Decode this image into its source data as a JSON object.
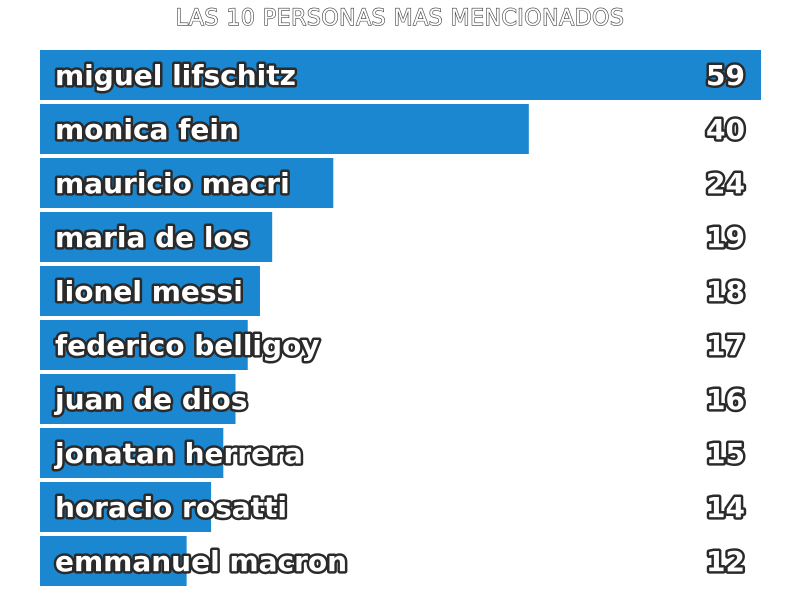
{
  "chart_data": {
    "type": "bar",
    "orientation": "horizontal",
    "title": "LAS 10 PERSONAS MAS MENCIONADOS",
    "categories": [
      "miguel lifschitz",
      "monica fein",
      "mauricio macri",
      "maria de los",
      "lionel messi",
      "federico belligoy",
      "juan de dios",
      "jonatan herrera",
      "horacio rosatti",
      "emmanuel macron"
    ],
    "values": [
      59,
      40,
      24,
      19,
      18,
      17,
      16,
      15,
      14,
      12
    ],
    "xlim": [
      0,
      59
    ],
    "bar_color": "#1a87d0",
    "xlabel": "",
    "ylabel": "",
    "grid": false,
    "legend": "none"
  }
}
